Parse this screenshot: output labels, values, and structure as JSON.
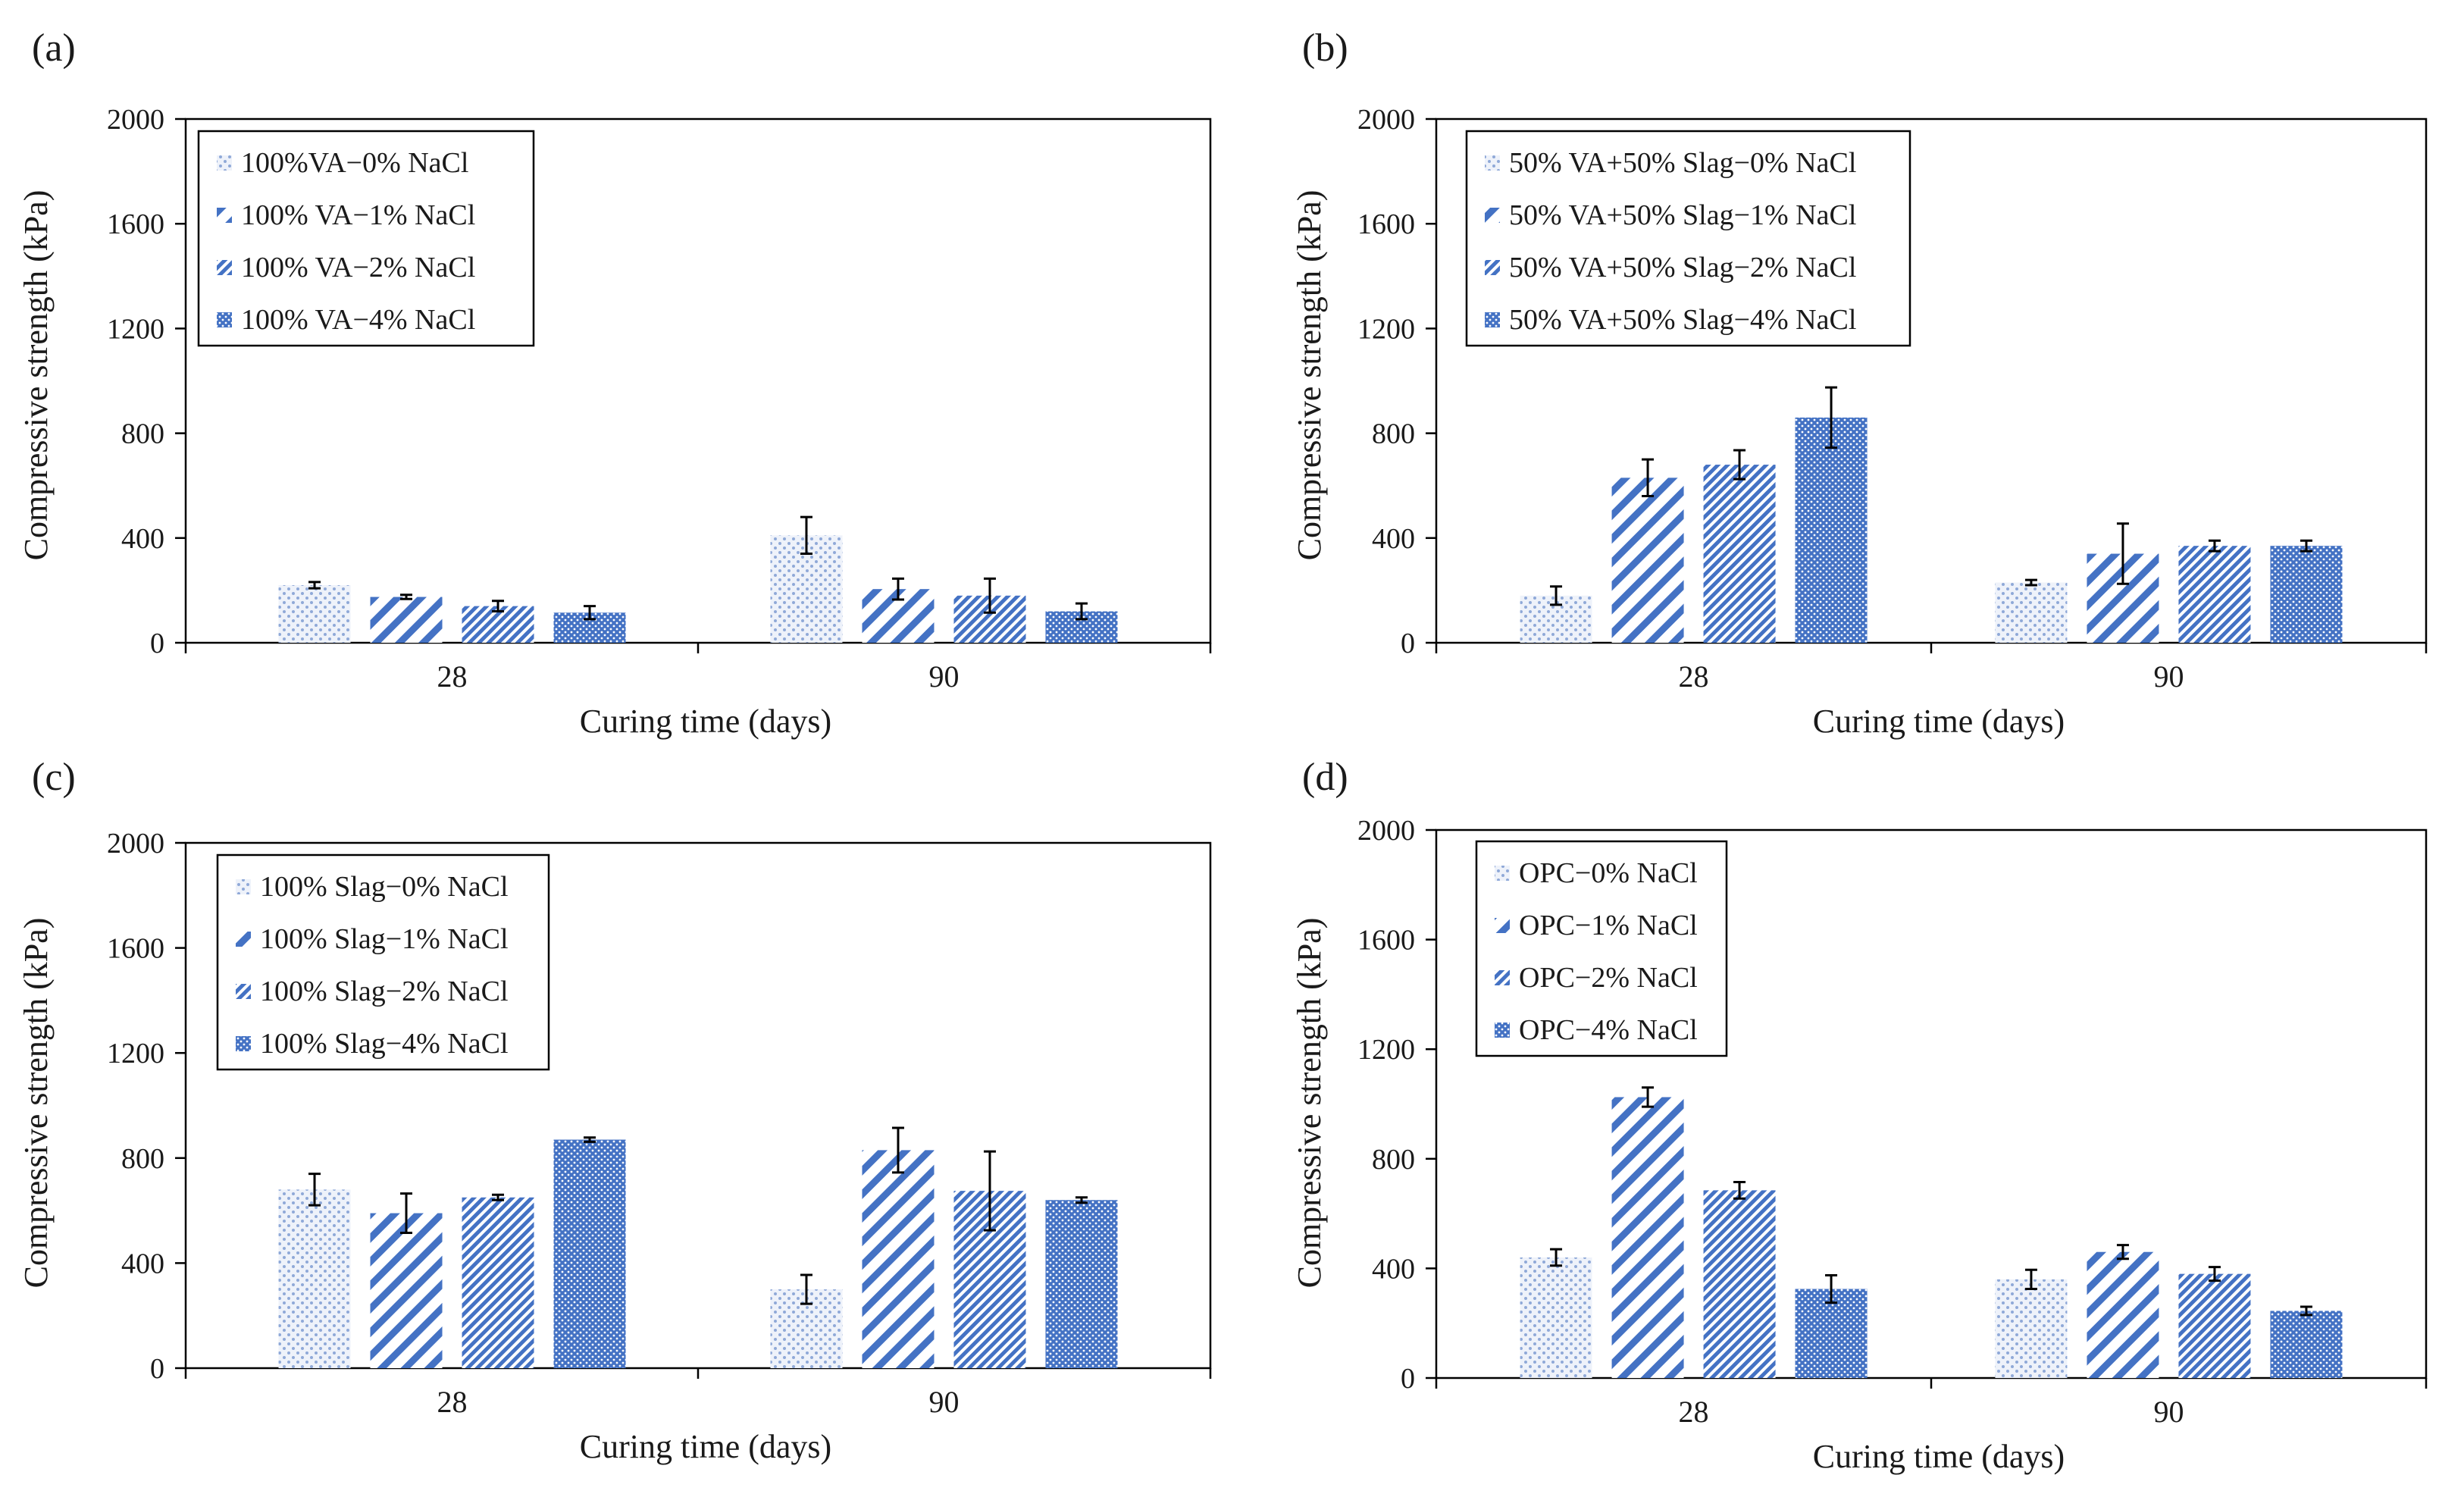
{
  "figure": {
    "colors": {
      "bar": "#4472C4",
      "bar_light": "#c5d3ec",
      "axis": "#000000",
      "text": "#1a1a1a"
    }
  },
  "chart_data": [
    {
      "type": "bar",
      "panel_label": "(a)",
      "title": "",
      "xlabel": "Curing time (days)",
      "ylabel": "Compressive  strength (kPa)",
      "categories": [
        "28",
        "90"
      ],
      "ylim": [
        0,
        2000
      ],
      "yticks": [
        "0",
        "400",
        "800",
        "1200",
        "1600",
        "2000"
      ],
      "legend_position": "top-left",
      "series": [
        {
          "name": "100%VA−0% NaCl",
          "pattern": "dots",
          "values": [
            220,
            410
          ],
          "errors": [
            12,
            70
          ]
        },
        {
          "name": "100% VA−1% NaCl",
          "pattern": "wide-diagonal",
          "values": [
            175,
            205
          ],
          "errors": [
            8,
            40
          ]
        },
        {
          "name": "100% VA−2% NaCl",
          "pattern": "narrow-diagonal",
          "values": [
            140,
            180
          ],
          "errors": [
            20,
            65
          ]
        },
        {
          "name": "100% VA−4% NaCl",
          "pattern": "dense-dots",
          "values": [
            115,
            120
          ],
          "errors": [
            25,
            30
          ]
        }
      ]
    },
    {
      "type": "bar",
      "panel_label": "(b)",
      "title": "",
      "xlabel": "Curing time (days)",
      "ylabel": "Compressive  strength (kPa)",
      "categories": [
        "28",
        "90"
      ],
      "ylim": [
        0,
        2000
      ],
      "yticks": [
        "0",
        "400",
        "800",
        "1200",
        "1600",
        "2000"
      ],
      "legend_position": "top-left",
      "series": [
        {
          "name": "50% VA+50% Slag−0% NaCl",
          "pattern": "dots",
          "values": [
            180,
            230
          ],
          "errors": [
            35,
            10
          ]
        },
        {
          "name": "50% VA+50% Slag−1% NaCl",
          "pattern": "wide-diagonal",
          "values": [
            630,
            340
          ],
          "errors": [
            70,
            115
          ]
        },
        {
          "name": "50% VA+50% Slag−2% NaCl",
          "pattern": "narrow-diagonal",
          "values": [
            680,
            370
          ],
          "errors": [
            55,
            20
          ]
        },
        {
          "name": "50% VA+50% Slag−4% NaCl",
          "pattern": "dense-dots",
          "values": [
            860,
            370
          ],
          "errors": [
            115,
            20
          ]
        }
      ]
    },
    {
      "type": "bar",
      "panel_label": "(c)",
      "title": "",
      "xlabel": "Curing time (days)",
      "ylabel": "Compressive  strength (kPa)",
      "categories": [
        "28",
        "90"
      ],
      "ylim": [
        0,
        2000
      ],
      "yticks": [
        "0",
        "400",
        "800",
        "1200",
        "1600",
        "2000"
      ],
      "legend_position": "top-left",
      "series": [
        {
          "name": "100% Slag−0% NaCl",
          "pattern": "dots",
          "values": [
            680,
            300
          ],
          "errors": [
            60,
            55
          ]
        },
        {
          "name": "100% Slag−1% NaCl",
          "pattern": "wide-diagonal",
          "values": [
            590,
            830
          ],
          "errors": [
            75,
            85
          ]
        },
        {
          "name": "100% Slag−2% NaCl",
          "pattern": "narrow-diagonal",
          "values": [
            650,
            675
          ],
          "errors": [
            10,
            150
          ]
        },
        {
          "name": "100% Slag−4% NaCl",
          "pattern": "dense-dots",
          "values": [
            870,
            640
          ],
          "errors": [
            8,
            10
          ]
        }
      ]
    },
    {
      "type": "bar",
      "panel_label": "(d)",
      "title": "",
      "xlabel": "Curing time (days)",
      "ylabel": "Compressive  strength (kPa)",
      "categories": [
        "28",
        "90"
      ],
      "ylim": [
        0,
        2000
      ],
      "yticks": [
        "0",
        "400",
        "800",
        "1200",
        "1600",
        "2000"
      ],
      "legend_position": "top-left",
      "series": [
        {
          "name": "OPC−0% NaCl",
          "pattern": "dots",
          "values": [
            440,
            360
          ],
          "errors": [
            30,
            35
          ]
        },
        {
          "name": "OPC−1% NaCl",
          "pattern": "wide-diagonal",
          "values": [
            1025,
            460
          ],
          "errors": [
            35,
            25
          ]
        },
        {
          "name": "OPC−2% NaCl",
          "pattern": "narrow-diagonal",
          "values": [
            685,
            380
          ],
          "errors": [
            30,
            25
          ]
        },
        {
          "name": "OPC−4% NaCl",
          "pattern": "dense-dots",
          "values": [
            325,
            245
          ],
          "errors": [
            50,
            15
          ]
        }
      ]
    }
  ]
}
